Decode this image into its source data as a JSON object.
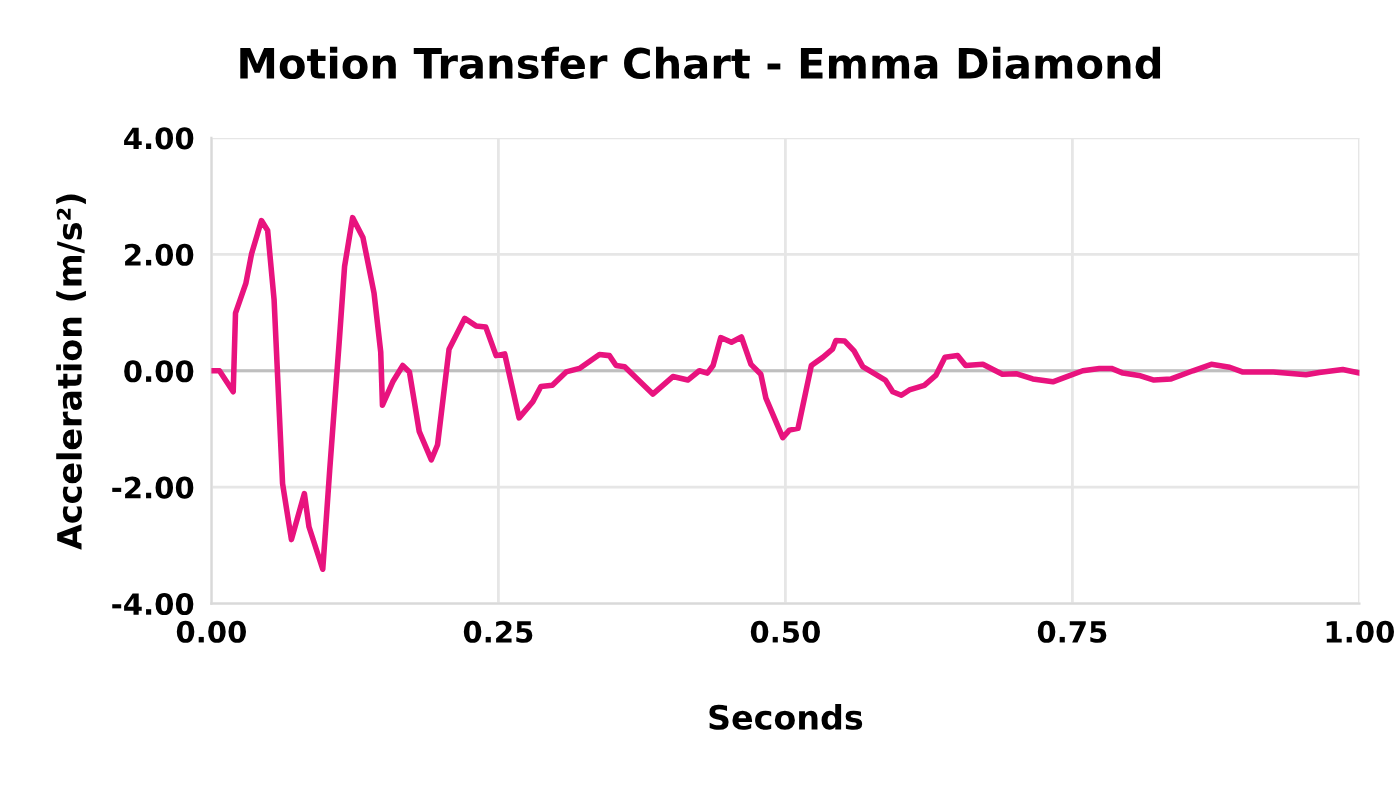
{
  "chart_data": {
    "type": "line",
    "title": "Motion Transfer Chart - Emma Diamond",
    "xlabel": "Seconds",
    "ylabel": "Acceleration (m/s²)",
    "x": [
      0,
      0.007,
      0.019,
      0.021,
      0.03,
      0.035,
      0.0436,
      0.049,
      0.0546,
      0.062,
      0.0697,
      0.081,
      0.085,
      0.097,
      0.103,
      0.1115,
      0.116,
      0.123,
      0.132,
      0.1417,
      0.1475,
      0.149,
      0.158,
      0.1667,
      0.1725,
      0.181,
      0.1916,
      0.197,
      0.207,
      0.2207,
      0.2305,
      0.239,
      0.248,
      0.2555,
      0.268,
      0.28,
      0.287,
      0.297,
      0.309,
      0.3206,
      0.338,
      0.3467,
      0.3525,
      0.36,
      0.3845,
      0.402,
      0.415,
      0.425,
      0.432,
      0.437,
      0.4437,
      0.453,
      0.4617,
      0.47,
      0.4786,
      0.483,
      0.4977,
      0.5035,
      0.511,
      0.5226,
      0.5326,
      0.541,
      0.544,
      0.5517,
      0.5598,
      0.5674,
      0.587,
      0.5935,
      0.601,
      0.608,
      0.621,
      0.631,
      0.639,
      0.65,
      0.657,
      0.672,
      0.689,
      0.701,
      0.7155,
      0.733,
      0.744,
      0.759,
      0.7735,
      0.784,
      0.794,
      0.808,
      0.821,
      0.836,
      0.855,
      0.871,
      0.887,
      0.898,
      0.925,
      0.9535,
      0.965,
      0.9855,
      1.0
    ],
    "series": [
      {
        "color": "#e8137e",
        "values": [
          0,
          0,
          -0.36,
          0.99,
          1.5,
          2.01,
          2.58,
          2.41,
          1.22,
          -1.94,
          -2.9,
          -2.11,
          -2.68,
          -3.41,
          -1.72,
          0.54,
          1.79,
          2.63,
          2.29,
          1.33,
          0.32,
          -0.59,
          -0.19,
          0.09,
          -0.02,
          -1.04,
          -1.53,
          -1.27,
          0.37,
          0.9,
          0.77,
          0.75,
          0.26,
          0.29,
          -0.81,
          -0.53,
          -0.27,
          -0.25,
          -0.02,
          0.04,
          0.28,
          0.26,
          0.09,
          0.07,
          -0.4,
          -0.1,
          -0.16,
          0,
          -0.04,
          0.09,
          0.57,
          0.49,
          0.58,
          0.11,
          -0.06,
          -0.47,
          -1.15,
          -1.02,
          -0.99,
          0.09,
          0.23,
          0.37,
          0.52,
          0.51,
          0.34,
          0.07,
          -0.16,
          -0.36,
          -0.42,
          -0.33,
          -0.25,
          -0.08,
          0.23,
          0.26,
          0.09,
          0.11,
          -0.06,
          -0.05,
          -0.14,
          -0.19,
          -0.11,
          0,
          0.04,
          0.04,
          -0.04,
          -0.08,
          -0.16,
          -0.14,
          0,
          0.11,
          0.06,
          -0.02,
          -0.02,
          -0.07,
          -0.03,
          0.02,
          -0.04
        ]
      }
    ],
    "xlim": [
      0,
      1
    ],
    "xticks": [
      {
        "value": 0,
        "label": "0.00"
      },
      {
        "value": 0.25,
        "label": "0.25"
      },
      {
        "value": 0.5,
        "label": "0.50"
      },
      {
        "value": 0.75,
        "label": "0.75"
      },
      {
        "value": 1,
        "label": "1.00"
      }
    ],
    "ylim": [
      -4,
      4
    ],
    "yticks": [
      {
        "value": -4,
        "label": "-4.00"
      },
      {
        "value": -2,
        "label": "-2.00"
      },
      {
        "value": 0,
        "label": "0.00"
      },
      {
        "value": 2,
        "label": "2.00"
      },
      {
        "value": 4,
        "label": "4.00"
      }
    ],
    "grid": true,
    "line_style": "solid",
    "marker": "none"
  }
}
